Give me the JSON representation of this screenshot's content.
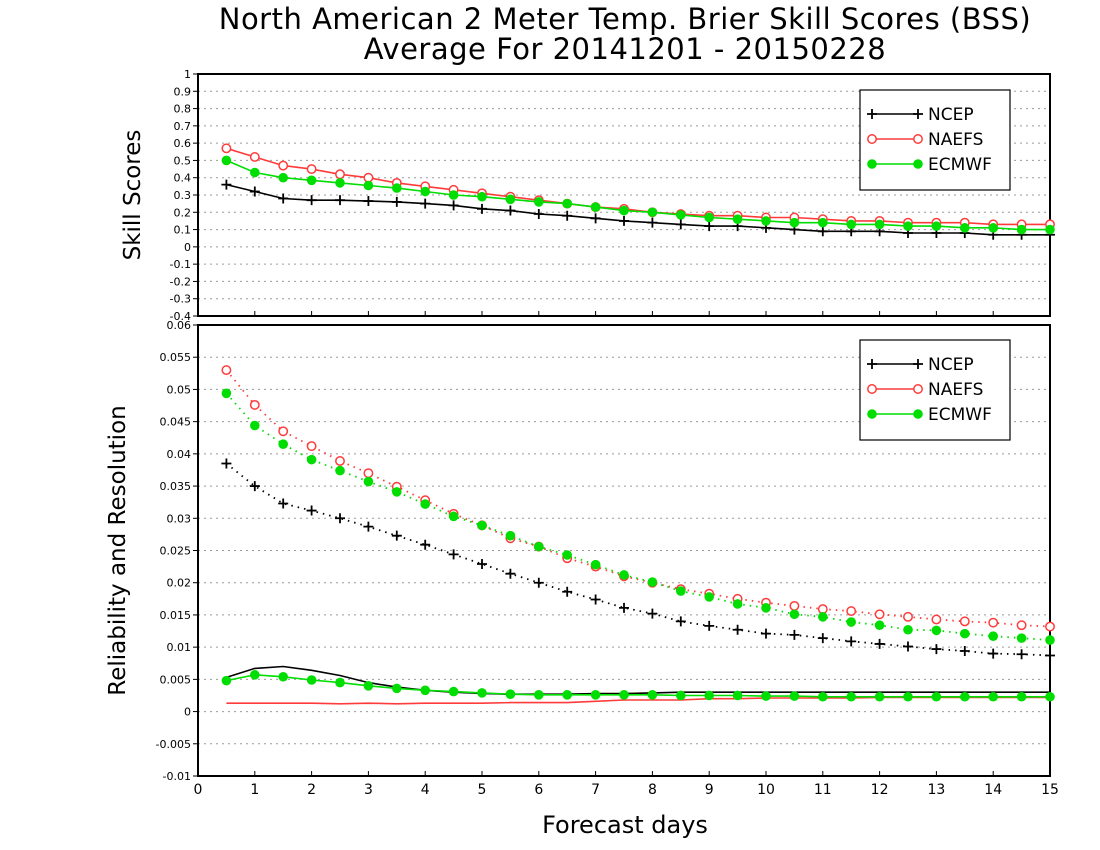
{
  "figure": {
    "title_line1": "North American 2 Meter Temp. Brier Skill Scores (BSS)",
    "title_line2": "Average For 20141201 - 20150228",
    "xlabel": "Forecast days"
  },
  "chart_data": [
    {
      "type": "line",
      "ylabel": "Skill Scores",
      "xlabel": "Forecast days",
      "xlim": [
        0,
        15
      ],
      "ylim": [
        -0.4,
        1
      ],
      "xticks": [
        "0",
        "1",
        "2",
        "3",
        "4",
        "5",
        "6",
        "7",
        "8",
        "9",
        "10",
        "11",
        "12",
        "13",
        "14",
        "15"
      ],
      "yticks": [
        "-0.4",
        "-0.3",
        "-0.2",
        "-0.1",
        "0",
        "0.1",
        "0.2",
        "0.3",
        "0.4",
        "0.5",
        "0.6",
        "0.7",
        "0.8",
        "0.9",
        "1"
      ],
      "grid": "horizontal dotted",
      "legend_position": "top-right",
      "x": [
        0.5,
        1,
        1.5,
        2,
        2.5,
        3,
        3.5,
        4,
        4.5,
        5,
        5.5,
        6,
        6.5,
        7,
        7.5,
        8,
        8.5,
        9,
        9.5,
        10,
        10.5,
        11,
        11.5,
        12,
        12.5,
        13,
        13.5,
        14,
        14.5,
        15
      ],
      "series": [
        {
          "name": "NCEP",
          "color": "#000000",
          "marker": "plus",
          "style": "solid",
          "values": [
            0.36,
            0.32,
            0.28,
            0.27,
            0.27,
            0.265,
            0.26,
            0.25,
            0.24,
            0.22,
            0.21,
            0.19,
            0.18,
            0.165,
            0.15,
            0.14,
            0.13,
            0.12,
            0.12,
            0.11,
            0.1,
            0.09,
            0.09,
            0.09,
            0.08,
            0.08,
            0.08,
            0.07,
            0.07,
            0.07
          ]
        },
        {
          "name": "NAEFS",
          "color": "#ff3b3b",
          "marker": "open-circle",
          "style": "solid",
          "values": [
            0.57,
            0.52,
            0.47,
            0.45,
            0.42,
            0.4,
            0.37,
            0.35,
            0.33,
            0.31,
            0.29,
            0.27,
            0.25,
            0.23,
            0.22,
            0.2,
            0.19,
            0.18,
            0.18,
            0.17,
            0.17,
            0.16,
            0.15,
            0.15,
            0.14,
            0.14,
            0.14,
            0.13,
            0.13,
            0.13
          ]
        },
        {
          "name": "ECMWF",
          "color": "#00dd00",
          "marker": "filled-circle",
          "style": "solid",
          "values": [
            0.5,
            0.43,
            0.4,
            0.385,
            0.37,
            0.355,
            0.34,
            0.32,
            0.3,
            0.29,
            0.275,
            0.26,
            0.25,
            0.23,
            0.21,
            0.2,
            0.185,
            0.17,
            0.16,
            0.15,
            0.14,
            0.14,
            0.13,
            0.13,
            0.12,
            0.12,
            0.11,
            0.11,
            0.1,
            0.1
          ]
        }
      ]
    },
    {
      "type": "line",
      "ylabel": "Reliability and Resolution",
      "xlabel": "Forecast days",
      "xlim": [
        0,
        15
      ],
      "ylim": [
        -0.01,
        0.06
      ],
      "xticks": [
        "0",
        "1",
        "2",
        "3",
        "4",
        "5",
        "6",
        "7",
        "8",
        "9",
        "10",
        "11",
        "12",
        "13",
        "14",
        "15"
      ],
      "yticks": [
        "-0.01",
        "-0.005",
        "0",
        "0.005",
        "0.01",
        "0.015",
        "0.02",
        "0.025",
        "0.03",
        "0.035",
        "0.04",
        "0.045",
        "0.05",
        "0.055",
        "0.06"
      ],
      "grid": "horizontal dotted",
      "legend_position": "top-right",
      "x": [
        0.5,
        1,
        1.5,
        2,
        2.5,
        3,
        3.5,
        4,
        4.5,
        5,
        5.5,
        6,
        6.5,
        7,
        7.5,
        8,
        8.5,
        9,
        9.5,
        10,
        10.5,
        11,
        11.5,
        12,
        12.5,
        13,
        13.5,
        14,
        14.5,
        15
      ],
      "series": [
        {
          "name": "NCEP",
          "color": "#000000",
          "marker": "plus",
          "style": "dotted",
          "values": [
            0.0385,
            0.035,
            0.0323,
            0.0312,
            0.03,
            0.0287,
            0.0273,
            0.0259,
            0.0244,
            0.0229,
            0.0214,
            0.02,
            0.0186,
            0.0174,
            0.0161,
            0.0152,
            0.014,
            0.0133,
            0.0127,
            0.0121,
            0.0119,
            0.0114,
            0.0109,
            0.0105,
            0.0101,
            0.0097,
            0.0094,
            0.009,
            0.0089,
            0.0087
          ]
        },
        {
          "name": "NAEFS",
          "color": "#ff3b3b",
          "marker": "open-circle",
          "style": "dotted",
          "values": [
            0.053,
            0.0476,
            0.0435,
            0.0412,
            0.0389,
            0.037,
            0.0349,
            0.0328,
            0.0307,
            0.0289,
            0.0269,
            0.0256,
            0.0238,
            0.0225,
            0.021,
            0.02,
            0.019,
            0.0183,
            0.0175,
            0.0169,
            0.0164,
            0.0159,
            0.0156,
            0.0151,
            0.0147,
            0.0143,
            0.014,
            0.0138,
            0.0134,
            0.0132
          ]
        },
        {
          "name": "ECMWF",
          "color": "#00dd00",
          "marker": "filled-circle",
          "style": "dotted",
          "values": [
            0.0494,
            0.0444,
            0.0415,
            0.0391,
            0.0374,
            0.0357,
            0.0341,
            0.0322,
            0.0303,
            0.0289,
            0.0273,
            0.0256,
            0.0243,
            0.0228,
            0.0212,
            0.0201,
            0.0187,
            0.0178,
            0.0167,
            0.0161,
            0.0151,
            0.0147,
            0.0139,
            0.0134,
            0.0127,
            0.0126,
            0.0121,
            0.0117,
            0.0114,
            0.0111
          ]
        },
        {
          "name": "NCEP",
          "color": "#000000",
          "marker": "none",
          "style": "solid",
          "values": [
            0.0053,
            0.0067,
            0.007,
            0.0064,
            0.0056,
            0.0045,
            0.0038,
            0.0033,
            0.003,
            0.0028,
            0.0027,
            0.0027,
            0.0027,
            0.0028,
            0.0028,
            0.0029,
            0.003,
            0.003,
            0.003,
            0.003,
            0.003,
            0.003,
            0.003,
            0.003,
            0.003,
            0.003,
            0.003,
            0.003,
            0.003,
            0.003
          ]
        },
        {
          "name": "NAEFS",
          "color": "#ff3b3b",
          "marker": "none",
          "style": "solid",
          "values": [
            0.0013,
            0.0013,
            0.0013,
            0.0013,
            0.0012,
            0.0013,
            0.0012,
            0.0013,
            0.0013,
            0.0013,
            0.0014,
            0.0014,
            0.0014,
            0.0016,
            0.0018,
            0.0018,
            0.0018,
            0.002,
            0.002,
            0.0021,
            0.0021,
            0.0021,
            0.0021,
            0.0022,
            0.0022,
            0.0022,
            0.0022,
            0.0022,
            0.0022,
            0.0022
          ]
        },
        {
          "name": "ECMWF",
          "color": "#00dd00",
          "marker": "filled-circle",
          "style": "solid",
          "values": [
            0.0048,
            0.0057,
            0.0054,
            0.0049,
            0.0045,
            0.004,
            0.0036,
            0.0033,
            0.0031,
            0.0029,
            0.0027,
            0.0026,
            0.0026,
            0.0026,
            0.0026,
            0.0026,
            0.0025,
            0.0025,
            0.0025,
            0.0024,
            0.0024,
            0.0023,
            0.0023,
            0.0023,
            0.0023,
            0.0023,
            0.0023,
            0.0023,
            0.0023,
            0.0023
          ]
        }
      ]
    }
  ],
  "legend": [
    {
      "name": "NCEP",
      "marker": "plus",
      "color": "#000000"
    },
    {
      "name": "NAEFS",
      "marker": "open-circle",
      "color": "#ff3b3b"
    },
    {
      "name": "ECMWF",
      "marker": "filled-circle",
      "color": "#00dd00"
    }
  ]
}
